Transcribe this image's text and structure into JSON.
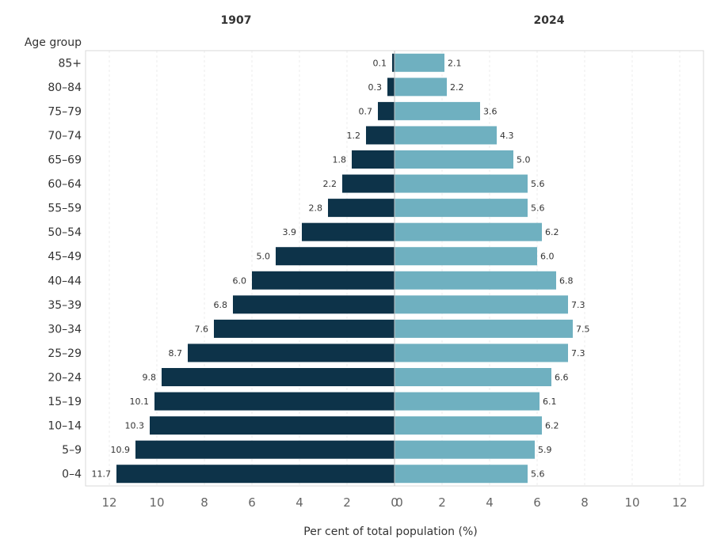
{
  "chart_data": {
    "type": "bar",
    "orientation": "horizontal",
    "layout": "population-pyramid",
    "y_axis_title": "Age group",
    "xlabel": "Per cent of total population (%)",
    "categories": [
      "85+",
      "80–84",
      "75–79",
      "70–74",
      "65–69",
      "60–64",
      "55–59",
      "50–54",
      "45–49",
      "40–44",
      "35–39",
      "30–34",
      "25–29",
      "20–24",
      "15–19",
      "10–14",
      "5–9",
      "0–4"
    ],
    "series": [
      {
        "name": "1907",
        "side": "left",
        "color": "#0d3349",
        "values": [
          0.1,
          0.3,
          0.7,
          1.2,
          1.8,
          2.2,
          2.8,
          3.9,
          5.0,
          6.0,
          6.8,
          7.6,
          8.7,
          9.8,
          10.1,
          10.3,
          10.9,
          11.7
        ],
        "labels": [
          "0.1",
          "0.3",
          "0.7",
          "1.2",
          "1.8",
          "2.2",
          "2.8",
          "3.9",
          "5.0",
          "6.0",
          "6.8",
          "7.6",
          "8.7",
          "9.8",
          "10.1",
          "10.3",
          "10.9",
          "11.7"
        ]
      },
      {
        "name": "2024",
        "side": "right",
        "color": "#6fb0c0",
        "values": [
          2.1,
          2.2,
          3.6,
          4.3,
          5.0,
          5.6,
          5.6,
          6.2,
          6.0,
          6.8,
          7.3,
          7.5,
          7.3,
          6.6,
          6.1,
          6.2,
          5.9,
          5.6
        ],
        "labels": [
          "2.1",
          "2.2",
          "3.6",
          "4.3",
          "5.0",
          "5.6",
          "5.6",
          "6.2",
          "6.0",
          "6.8",
          "7.3",
          "7.5",
          "7.3",
          "6.6",
          "6.1",
          "6.2",
          "5.9",
          "5.6"
        ]
      }
    ],
    "xlim": [
      0,
      13
    ],
    "x_ticks_left": [
      "12",
      "10",
      "8",
      "6",
      "4",
      "2",
      "0"
    ],
    "x_ticks_right": [
      "0",
      "2",
      "4",
      "6",
      "8",
      "10",
      "12"
    ],
    "grid": true
  }
}
